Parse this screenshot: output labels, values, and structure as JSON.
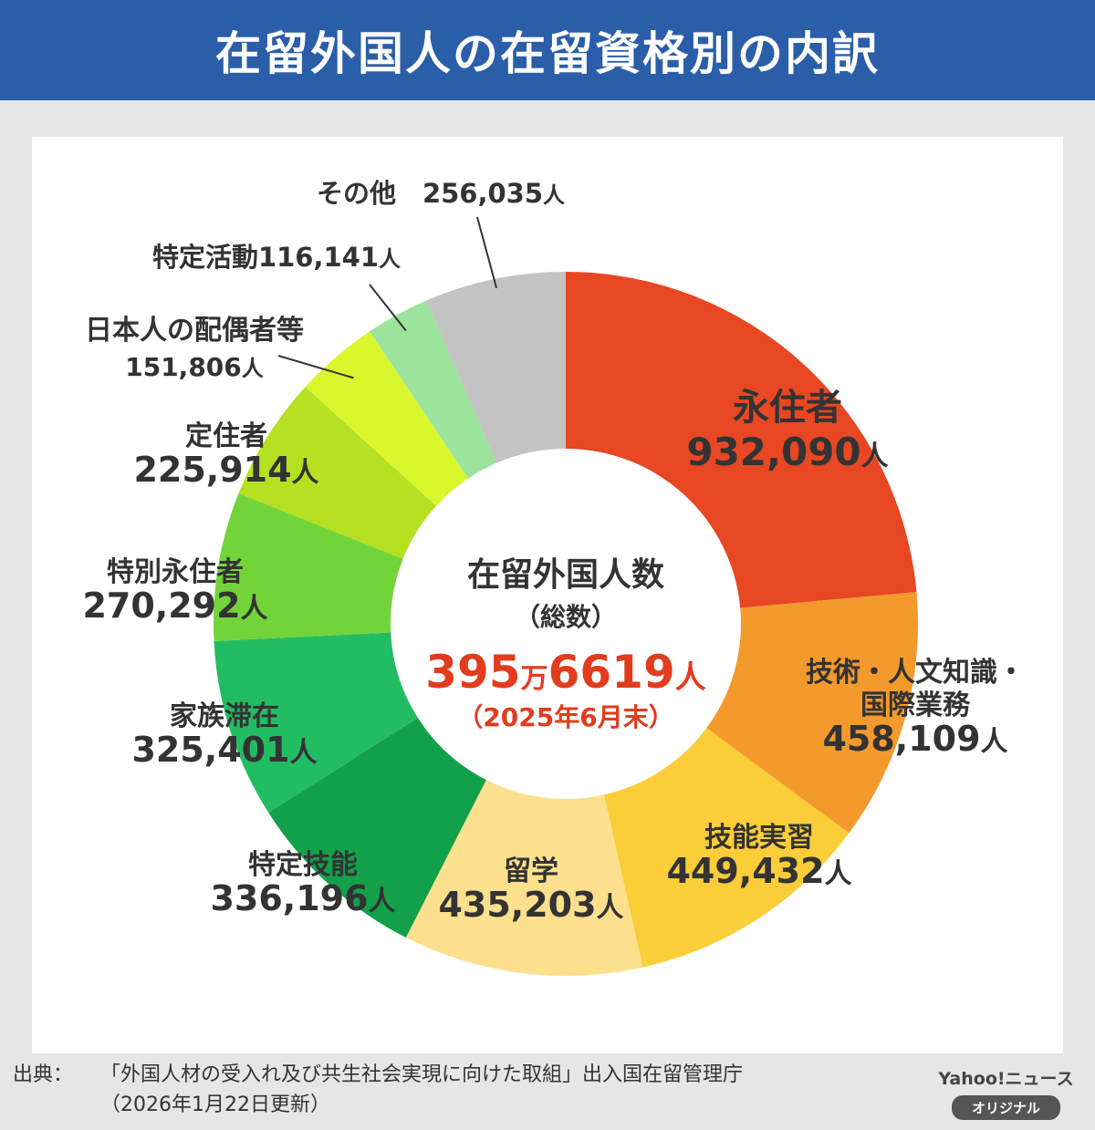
{
  "header": {
    "title": "在留外国人の在留資格別の内訳"
  },
  "chart_data": {
    "type": "pie",
    "title": "在留外国人の在留資格別の内訳",
    "center": {
      "title": "在留外国人数",
      "subtitle": "（総数）",
      "total_main": "395",
      "total_man": "万",
      "total_rest": "6619",
      "total_unit": "人",
      "date": "（2025年6月末）"
    },
    "categories": [
      "永住者",
      "技術・人文知識・国際業務",
      "技能実習",
      "留学",
      "特定技能",
      "家族滞在",
      "特別永住者",
      "定住者",
      "日本人の配偶者等",
      "特定活動",
      "その他"
    ],
    "values": [
      932090,
      458109,
      449432,
      435203,
      336196,
      325401,
      270292,
      225914,
      151806,
      116141,
      256035
    ],
    "slices": [
      {
        "name": "永住者",
        "label_lines": [
          "永住者"
        ],
        "value_text": "932,090",
        "unit": "人",
        "color": "#e84723"
      },
      {
        "name": "技術・人文知識・国際業務",
        "label_lines": [
          "技術・人文知識・",
          "国際業務"
        ],
        "value_text": "458,109",
        "unit": "人",
        "color": "#f49a2c"
      },
      {
        "name": "技能実習",
        "label_lines": [
          "技能実習"
        ],
        "value_text": "449,432",
        "unit": "人",
        "color": "#fbcd38"
      },
      {
        "name": "留学",
        "label_lines": [
          "留学"
        ],
        "value_text": "435,203",
        "unit": "人",
        "color": "#fde08e"
      },
      {
        "name": "特定技能",
        "label_lines": [
          "特定技能"
        ],
        "value_text": "336,196",
        "unit": "人",
        "color": "#13a04b"
      },
      {
        "name": "家族滞在",
        "label_lines": [
          "家族滞在"
        ],
        "value_text": "325,401",
        "unit": "人",
        "color": "#22bd63"
      },
      {
        "name": "特別永住者",
        "label_lines": [
          "特別永住者"
        ],
        "value_text": "270,292",
        "unit": "人",
        "color": "#73d43a"
      },
      {
        "name": "定住者",
        "label_lines": [
          "定住者"
        ],
        "value_text": "225,914",
        "unit": "人",
        "color": "#b6e022"
      },
      {
        "name": "日本人の配偶者等",
        "label_lines": [
          "日本人の配偶者等"
        ],
        "value_text": "151,806",
        "unit": "人",
        "color": "#d9f72c"
      },
      {
        "name": "特定活動",
        "label_lines": [
          "特定活動"
        ],
        "value_text": "116,141",
        "unit": "人",
        "color": "#9ce39b"
      },
      {
        "name": "その他",
        "label_lines": [
          "その他"
        ],
        "value_text": "256,035",
        "unit": "人",
        "color": "#c4c4c4"
      }
    ]
  },
  "footer": {
    "source_label": "出典：",
    "source_text": "「外国人材の受入れ及び共生社会実現に向けた取組」出入国在留管理庁",
    "updated": "（2026年1月22日更新）"
  },
  "brand": {
    "name": "Yahoo!ニュース",
    "badge": "オリジナル"
  }
}
